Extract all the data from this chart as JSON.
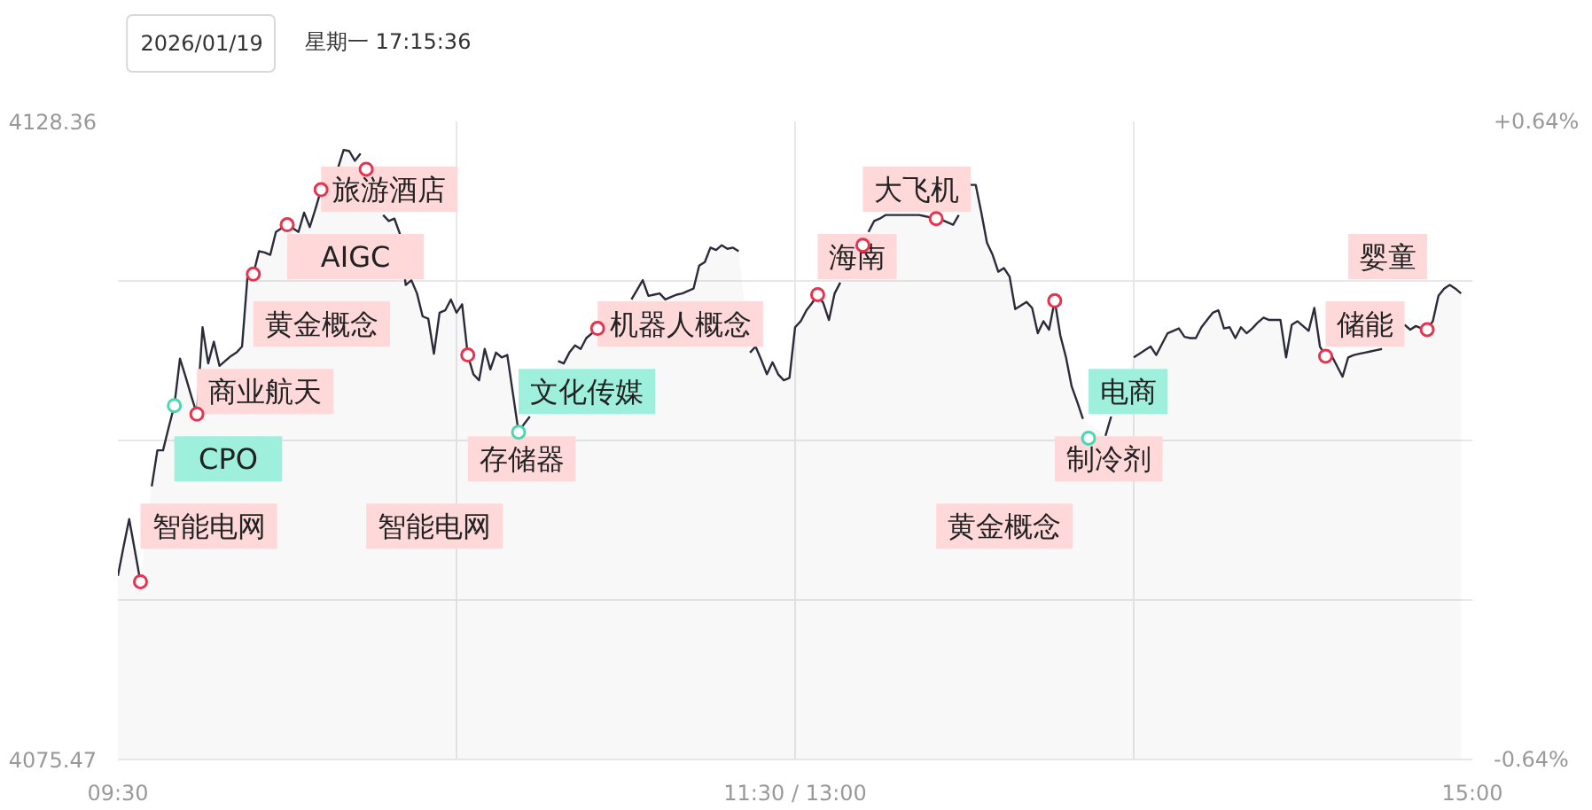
{
  "chart_data": {
    "type": "area",
    "title": "2026/01/19",
    "subtitle": "星期一 17:15:36",
    "categories": [
      "09:30",
      null,
      null,
      null,
      null,
      null,
      null,
      null,
      null,
      null,
      null,
      null,
      null,
      null,
      null,
      null,
      null,
      null,
      null,
      null,
      null,
      null,
      null,
      null,
      null,
      null,
      null,
      null,
      null,
      null,
      null,
      null,
      null,
      null,
      null,
      null,
      null,
      null,
      null,
      null,
      null,
      null,
      null,
      null,
      null,
      null,
      null,
      null,
      null,
      null,
      null,
      null,
      null,
      null,
      null,
      null,
      null,
      null,
      null,
      null,
      null,
      null,
      null,
      null,
      null,
      null,
      null,
      null,
      null,
      null,
      null,
      null,
      null,
      null,
      null,
      null,
      null,
      null,
      null,
      null,
      null,
      null,
      null,
      null,
      null,
      null,
      null,
      null,
      null,
      null,
      null,
      null,
      null,
      null,
      null,
      null,
      null,
      null,
      null,
      null,
      null,
      null,
      null,
      null,
      null,
      null,
      null,
      null,
      null,
      null,
      null,
      null,
      null,
      null,
      null,
      null,
      null,
      null,
      null,
      null,
      "11:30 / 13:00",
      null,
      null,
      null,
      null,
      null,
      null,
      null,
      null,
      null,
      null,
      null,
      null,
      null,
      null,
      null,
      null,
      null,
      null,
      null,
      null,
      null,
      null,
      null,
      null,
      null,
      null,
      null,
      null,
      null,
      null,
      null,
      null,
      null,
      null,
      null,
      null,
      null,
      null,
      null,
      null,
      null,
      null,
      null,
      null,
      null,
      null,
      null,
      null,
      null,
      null,
      null,
      null,
      null,
      null,
      null,
      null,
      null,
      null,
      null,
      null,
      null,
      null,
      null,
      null,
      null,
      null,
      null,
      null,
      null,
      null,
      null,
      null,
      null,
      null,
      null,
      null,
      null,
      null,
      null,
      null,
      null,
      null,
      null,
      null,
      null,
      null,
      null,
      null,
      null,
      null,
      null,
      null,
      null,
      null,
      null,
      null,
      null,
      null,
      null,
      null,
      null,
      null,
      null,
      null,
      null,
      null,
      null,
      null,
      null,
      null,
      null,
      null,
      null,
      null,
      null,
      null,
      null,
      null,
      null,
      "15:00"
    ],
    "ylim": [
      4075.47,
      4128.36
    ],
    "yticks": [
      4075.47,
      {
        "value": 4088.69,
        "label": null
      },
      {
        "value": 4101.915,
        "label": null
      },
      {
        "value": 4115.14,
        "label": null
      },
      4128.36
    ],
    "y2lim": [
      -0.64,
      0.64
    ],
    "y2ticks": [
      {
        "value": -0.64,
        "label": "-0.64%"
      },
      {
        "value": 0.64,
        "label": "+0.64%"
      }
    ],
    "grid": true,
    "series": [
      {
        "color": "#2b2b3a",
        "values": [
          4090.7,
          4093.1,
          4095.4,
          4092.8,
          4090.2,
          null,
          4098.1,
          4101.1,
          4101.1,
          4103.0,
          4104.8,
          4108.7,
          4107.2,
          4105.6,
          4104.1,
          4111.3,
          4108.3,
          4110.1,
          4108.1,
          4108.5,
          4108.9,
          4109.2,
          4109.7,
          4115.7,
          4115.7,
          4117.6,
          4117.5,
          4117.3,
          4119.2,
          4119.5,
          4119.8,
          4119.5,
          4119.2,
          4120.8,
          4119.6,
          4121.1,
          4122.7,
          null,
          null,
          4124.5,
          4126.0,
          4125.9,
          4125.1,
          4125.7,
          null,
          null,
          null,
          4120.6,
          4120.1,
          4120.3,
          4119.0,
          4114.8,
          4115.2,
          4114.1,
          4112.2,
          4112.0,
          4109.1,
          4112.5,
          4112.7,
          4113.6,
          4112.5,
          4113.2,
          4109.0,
          4107.4,
          4106.9,
          4109.5,
          4107.8,
          4109.2,
          4108.8,
          4109.0,
          4105.8,
          4102.6,
          4103.3,
          4103.9,
          null,
          null,
          null,
          null,
          4108.5,
          4108.3,
          4109.2,
          4109.8,
          4109.5,
          4110.4,
          4110.8,
          4111.2,
          null,
          null,
          null,
          null,
          null,
          4113.6,
          4114.4,
          4115.2,
          4113.9,
          4114.0,
          4114.1,
          4113.6,
          4113.8,
          4114.0,
          4114.1,
          4114.3,
          4114.5,
          4116.4,
          4116.7,
          4117.9,
          4117.7,
          4118.1,
          4117.8,
          4117.9,
          4117.6,
          null,
          4109.2,
          4109.7,
          4108.6,
          4107.4,
          4108.4,
          4107.4,
          4106.9,
          4107.1,
          4111.3,
          4111.8,
          4112.7,
          4113.3,
          4114.0,
          4113.3,
          4111.9,
          4114.1,
          4115.0,
          null,
          null,
          null,
          null,
          4119.2,
          4120.1,
          4120.3,
          4120.6,
          4120.6,
          4120.6,
          4120.6,
          4120.6,
          4120.6,
          4120.6,
          4120.5,
          4120.4,
          4120.3,
          4120.2,
          4120.0,
          4119.8,
          4120.6,
          null,
          4123.1,
          4123.1,
          4120.8,
          4118.3,
          4117.3,
          4115.9,
          4116.2,
          4115.5,
          4112.8,
          4113.1,
          4113.4,
          4112.9,
          4110.8,
          4111.8,
          4111.1,
          4113.5,
          4110.6,
          4108.8,
          4106.4,
          4105.1,
          4103.7,
          null,
          null,
          null,
          4102.3,
          4103.9,
          null,
          null,
          null,
          4108.8,
          4109.1,
          4109.4,
          4109.7,
          4109.0,
          4109.9,
          4110.8,
          4111.0,
          4111.2,
          4110.5,
          4110.4,
          4110.4,
          4111.3,
          4111.9,
          4112.5,
          4112.7,
          4111.2,
          4111.3,
          4110.4,
          4111.3,
          4110.8,
          4111.2,
          4111.7,
          4112.1,
          4111.9,
          4111.9,
          4111.9,
          4108.8,
          4111.5,
          4111.8,
          4111.4,
          4111.0,
          4112.9,
          4109.7,
          4108.9,
          4109.0,
          4108.1,
          4107.2,
          4108.8,
          4109.0,
          4109.1,
          4109.2,
          4109.3,
          4109.4,
          4109.5,
          null,
          null,
          null,
          4111.5,
          4111.1,
          4111.4,
          4111.2,
          4111.1,
          4111.8,
          4113.9,
          4114.5,
          4114.8,
          4114.5,
          4114.1,
          null,
          null
        ]
      },
      {
        "type": "scatter",
        "marker": "circle",
        "color": "#e8334f",
        "values": [
          null,
          null,
          null,
          null,
          4090.2,
          null,
          null,
          null,
          null,
          null,
          null,
          null,
          null,
          null,
          4104.1,
          null,
          null,
          null,
          null,
          null,
          null,
          null,
          null,
          null,
          4115.7,
          null,
          null,
          null,
          null,
          null,
          4119.8,
          null,
          null,
          null,
          null,
          null,
          4122.7,
          null,
          null,
          null,
          null,
          null,
          null,
          null,
          4124.4,
          null,
          null,
          null,
          null,
          null,
          null,
          null,
          null,
          null,
          null,
          null,
          null,
          null,
          null,
          null,
          null,
          null,
          4109.0,
          null,
          null,
          null,
          null,
          null,
          null,
          null,
          null,
          null,
          null,
          null,
          null,
          null,
          null,
          null,
          null,
          null,
          null,
          null,
          null,
          null,
          null,
          4111.2,
          null,
          null,
          null,
          null,
          null,
          null,
          null,
          null,
          null,
          null,
          null,
          null,
          null,
          null,
          null,
          null,
          null,
          null,
          null,
          null,
          null,
          null,
          null,
          null,
          null,
          null,
          null,
          null,
          null,
          null,
          null,
          null,
          null,
          null,
          null,
          null,
          null,
          null,
          4114.0,
          null,
          null,
          null,
          null,
          null,
          null,
          null,
          4118.1,
          null,
          null,
          null,
          null,
          null,
          null,
          null,
          null,
          null,
          null,
          null,
          null,
          4120.3,
          null,
          null,
          null,
          null,
          null,
          null,
          null,
          null,
          null,
          null,
          null,
          null,
          null,
          null,
          null,
          null,
          null,
          null,
          null,
          null,
          4113.5,
          null,
          null,
          null,
          null,
          null,
          null,
          null,
          null,
          null,
          null,
          null,
          null,
          null,
          null,
          null,
          null,
          null,
          null,
          null,
          null,
          null,
          null,
          null,
          null,
          null,
          null,
          null,
          null,
          null,
          null,
          null,
          null,
          null,
          null,
          null,
          null,
          null,
          null,
          null,
          null,
          null,
          null,
          null,
          null,
          null,
          null,
          null,
          4108.9,
          null,
          null,
          null,
          null,
          null,
          null,
          null,
          null,
          null,
          null,
          null,
          null,
          null,
          null,
          null,
          null,
          null,
          4111.1,
          null,
          null,
          null,
          null,
          null,
          null,
          null,
          null
        ]
      },
      {
        "type": "scatter",
        "marker": "circle",
        "color": "#4cd6b0",
        "values": [
          null,
          null,
          null,
          null,
          null,
          null,
          null,
          null,
          null,
          null,
          4104.8,
          null,
          null,
          null,
          null,
          null,
          null,
          null,
          null,
          null,
          null,
          null,
          null,
          null,
          null,
          null,
          null,
          null,
          null,
          null,
          null,
          null,
          null,
          null,
          null,
          null,
          null,
          null,
          null,
          null,
          null,
          null,
          null,
          null,
          null,
          null,
          null,
          null,
          null,
          null,
          null,
          null,
          null,
          null,
          null,
          null,
          null,
          null,
          null,
          null,
          null,
          null,
          null,
          null,
          null,
          null,
          null,
          null,
          null,
          null,
          null,
          4102.6,
          null,
          null,
          null,
          null,
          null,
          null,
          null,
          null,
          null,
          null,
          null,
          null,
          null,
          null,
          null,
          null,
          null,
          null,
          null,
          null,
          null,
          null,
          null,
          null,
          null,
          null,
          null,
          null,
          null,
          null,
          null,
          null,
          null,
          null,
          null,
          null,
          null,
          null,
          null,
          null,
          null,
          null,
          null,
          null,
          null,
          null,
          null,
          null,
          null,
          null,
          null,
          null,
          null,
          null,
          null,
          null,
          null,
          null,
          null,
          null,
          null,
          null,
          null,
          null,
          null,
          null,
          null,
          null,
          null,
          null,
          null,
          null,
          null,
          null,
          null,
          null,
          null,
          null,
          null,
          null,
          null,
          null,
          null,
          null,
          null,
          null,
          null,
          null,
          null,
          null,
          null,
          null,
          null,
          null,
          null,
          null,
          null,
          null,
          null,
          null,
          4102.1,
          null,
          null,
          null,
          null,
          null,
          null,
          null,
          null,
          null,
          null,
          null,
          null,
          null,
          null,
          null,
          null,
          null,
          null,
          null,
          null,
          null,
          null,
          null,
          null,
          null,
          null,
          null,
          null,
          null,
          null,
          null,
          null,
          null,
          null,
          null,
          null,
          null,
          null,
          null,
          null,
          null,
          null,
          null,
          null,
          null,
          null,
          null,
          null,
          null,
          null,
          null,
          null,
          null,
          null,
          null,
          null,
          null,
          null,
          null,
          null,
          null,
          null,
          null,
          null,
          null,
          null,
          null,
          null
        ]
      }
    ],
    "annotations": [
      "智能电网",
      "CPO",
      "商业航天",
      "黄金概念",
      "AIGC",
      "旅游酒店",
      "智能电网",
      "存储器",
      "文化传媒",
      "机器人概念",
      "海南",
      "大飞机",
      "黄金概念",
      "制冷剂",
      "电商",
      "储能",
      "婴童"
    ]
  }
}
